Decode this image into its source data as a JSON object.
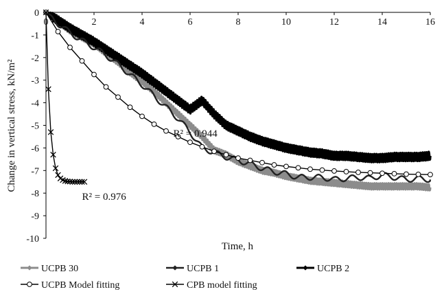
{
  "chart_data": {
    "type": "line",
    "xlabel": "Time, h",
    "ylabel": "Change in vertical stress, kN/m²",
    "xlim": [
      0,
      16
    ],
    "ylim": [
      -10,
      0
    ],
    "xticks": [
      "0",
      "2",
      "4",
      "6",
      "8",
      "10",
      "12",
      "14",
      "16"
    ],
    "yticks": [
      "0",
      "-1",
      "-2",
      "-3",
      "-4",
      "-5",
      "-6",
      "-7",
      "-8",
      "-9",
      "-10"
    ],
    "x_axis_position": "top",
    "grid": false,
    "legend_position": "bottom",
    "annotations": [
      {
        "text": "R² = 0.944",
        "x": 5.3,
        "y": -5.5
      },
      {
        "text": "R² = 0.976",
        "x": 1.5,
        "y": -8.3
      }
    ],
    "series": [
      {
        "name": "UCPB 30",
        "color": "#8c8c8c",
        "style": "noisy-band",
        "marker": "diamond",
        "x": [
          0,
          0.5,
          1,
          1.5,
          2,
          2.5,
          3,
          3.5,
          4,
          4.5,
          5,
          5.5,
          6,
          6.5,
          7,
          7.5,
          8,
          8.5,
          9,
          9.5,
          10,
          10.5,
          11,
          11.5,
          12,
          12.5,
          13,
          13.5,
          14,
          14.5,
          15,
          15.5,
          16
        ],
        "y": [
          0,
          -0.4,
          -0.8,
          -1.1,
          -1.4,
          -1.8,
          -2.2,
          -2.65,
          -3.05,
          -3.5,
          -4.0,
          -4.5,
          -5.0,
          -5.5,
          -6.1,
          -6.3,
          -6.6,
          -6.8,
          -7.0,
          -7.1,
          -7.25,
          -7.35,
          -7.45,
          -7.5,
          -7.55,
          -7.6,
          -7.65,
          -7.7,
          -7.7,
          -7.7,
          -7.7,
          -7.7,
          -7.75
        ]
      },
      {
        "name": "UCPB 1",
        "color": "#222222",
        "style": "oscillating",
        "marker": "diamond",
        "x": [
          0,
          0.5,
          1,
          1.5,
          2,
          2.5,
          3,
          3.5,
          4,
          4.5,
          5,
          5.5,
          6,
          6.5,
          7,
          7.5,
          8,
          8.5,
          9,
          9.5,
          10,
          10.5,
          11,
          11.5,
          12,
          12.5,
          13,
          13.5,
          14,
          14.5,
          15,
          15.5,
          16
        ],
        "y": [
          0,
          -0.5,
          -0.9,
          -1.25,
          -1.55,
          -1.9,
          -2.3,
          -2.75,
          -3.2,
          -3.7,
          -4.2,
          -4.7,
          -5.3,
          -6.0,
          -6.2,
          -6.4,
          -6.55,
          -6.7,
          -6.9,
          -7.05,
          -7.15,
          -7.3,
          -7.3,
          -7.3,
          -7.4,
          -7.35,
          -7.3,
          -7.35,
          -7.2,
          -7.3,
          -7.4,
          -7.35,
          -7.4
        ]
      },
      {
        "name": "UCPB 2",
        "color": "#000000",
        "style": "noisy-band",
        "marker": "diamond",
        "x": [
          0,
          0.5,
          1,
          1.5,
          2,
          2.5,
          3,
          3.5,
          4,
          4.5,
          5,
          5.5,
          6,
          6.5,
          7,
          7.5,
          8,
          8.5,
          9,
          9.5,
          10,
          10.5,
          11,
          11.5,
          12,
          12.5,
          13,
          13.5,
          14,
          14.5,
          15,
          15.5,
          16
        ],
        "y": [
          0,
          -0.35,
          -0.7,
          -1.0,
          -1.3,
          -1.65,
          -2.0,
          -2.35,
          -2.7,
          -3.1,
          -3.5,
          -3.9,
          -4.3,
          -3.9,
          -4.5,
          -5.0,
          -5.25,
          -5.5,
          -5.7,
          -5.85,
          -6.0,
          -6.1,
          -6.2,
          -6.25,
          -6.35,
          -6.35,
          -6.4,
          -6.45,
          -6.45,
          -6.4,
          -6.4,
          -6.4,
          -6.35
        ]
      },
      {
        "name": "UCPB Model fitting",
        "color": "#000000",
        "style": "line",
        "marker": "circle-open",
        "x": [
          0,
          0.5,
          1,
          1.5,
          2,
          2.5,
          3,
          3.5,
          4,
          4.5,
          5,
          5.5,
          6,
          6.5,
          7,
          7.5,
          8,
          8.5,
          9,
          9.5,
          10,
          10.5,
          11,
          11.5,
          12,
          12.5,
          13,
          13.5,
          14,
          14.5,
          15,
          15.5,
          16
        ],
        "y": [
          0,
          -0.85,
          -1.55,
          -2.15,
          -2.75,
          -3.3,
          -3.75,
          -4.2,
          -4.6,
          -4.95,
          -5.25,
          -5.5,
          -5.75,
          -5.95,
          -6.15,
          -6.3,
          -6.45,
          -6.55,
          -6.65,
          -6.75,
          -6.82,
          -6.88,
          -6.94,
          -6.98,
          -7.02,
          -7.05,
          -7.08,
          -7.1,
          -7.12,
          -7.14,
          -7.16,
          -7.17,
          -7.18
        ]
      },
      {
        "name": "CPB model fitting",
        "color": "#000000",
        "style": "line",
        "marker": "x",
        "x": [
          0,
          0.1,
          0.2,
          0.3,
          0.4,
          0.5,
          0.6,
          0.7,
          0.8,
          0.9,
          1.0,
          1.1,
          1.2,
          1.3,
          1.4,
          1.5,
          1.6
        ],
        "y": [
          0,
          -3.4,
          -5.3,
          -6.3,
          -6.9,
          -7.2,
          -7.35,
          -7.42,
          -7.46,
          -7.48,
          -7.49,
          -7.5,
          -7.5,
          -7.5,
          -7.5,
          -7.5,
          -7.5
        ]
      }
    ]
  }
}
